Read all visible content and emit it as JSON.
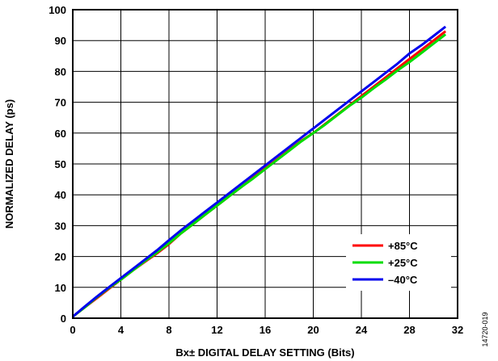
{
  "chart_data": {
    "type": "line",
    "xlabel": "Bx± DIGITAL DELAY SETTING (Bits)",
    "ylabel": "NORMALIZED DELAY (ps)",
    "xlim": [
      0,
      32
    ],
    "ylim": [
      0,
      100
    ],
    "xticks": [
      0,
      4,
      8,
      12,
      16,
      20,
      24,
      28,
      32
    ],
    "yticks": [
      0,
      10,
      20,
      30,
      40,
      50,
      60,
      70,
      80,
      90,
      100
    ],
    "grid": true,
    "legend_position": "bottom-right",
    "figure_id": "14720-019",
    "x": [
      0,
      1,
      2,
      3,
      4,
      5,
      6,
      7,
      8,
      9,
      10,
      11,
      12,
      13,
      14,
      15,
      16,
      17,
      18,
      19,
      20,
      21,
      22,
      23,
      24,
      25,
      26,
      27,
      28,
      29,
      30,
      31
    ],
    "series": [
      {
        "name": "+85°C",
        "color": "#ff0000",
        "values": [
          0.5,
          3.5,
          6.5,
          9.5,
          12.5,
          15.5,
          18.3,
          21.0,
          24.0,
          27.5,
          30.5,
          33.5,
          36.5,
          39.5,
          42.5,
          45.5,
          48.5,
          51.5,
          54.5,
          57.5,
          60.0,
          63.0,
          66.0,
          69.0,
          72.0,
          75.0,
          78.0,
          81.0,
          84.0,
          87.0,
          90.0,
          93.0
        ]
      },
      {
        "name": "+25°C",
        "color": "#00dd00",
        "values": [
          0.5,
          3.5,
          6.8,
          9.8,
          12.5,
          15.5,
          18.5,
          21.3,
          24.3,
          27.5,
          30.5,
          33.5,
          36.5,
          39.5,
          42.5,
          45.3,
          48.3,
          51.3,
          54.3,
          57.3,
          60.0,
          62.8,
          65.8,
          68.8,
          71.5,
          74.5,
          77.3,
          80.3,
          83.0,
          86.0,
          89.0,
          92.0
        ]
      },
      {
        "name": "–40°C",
        "color": "#0000ee",
        "values": [
          0.5,
          3.8,
          7.0,
          10.0,
          13.0,
          16.0,
          19.0,
          22.0,
          25.3,
          28.5,
          31.5,
          34.5,
          37.5,
          40.5,
          43.5,
          46.5,
          49.5,
          52.5,
          55.5,
          58.5,
          61.5,
          64.5,
          67.5,
          70.5,
          73.5,
          76.5,
          79.5,
          82.5,
          85.8,
          88.5,
          91.5,
          94.5
        ]
      }
    ]
  }
}
